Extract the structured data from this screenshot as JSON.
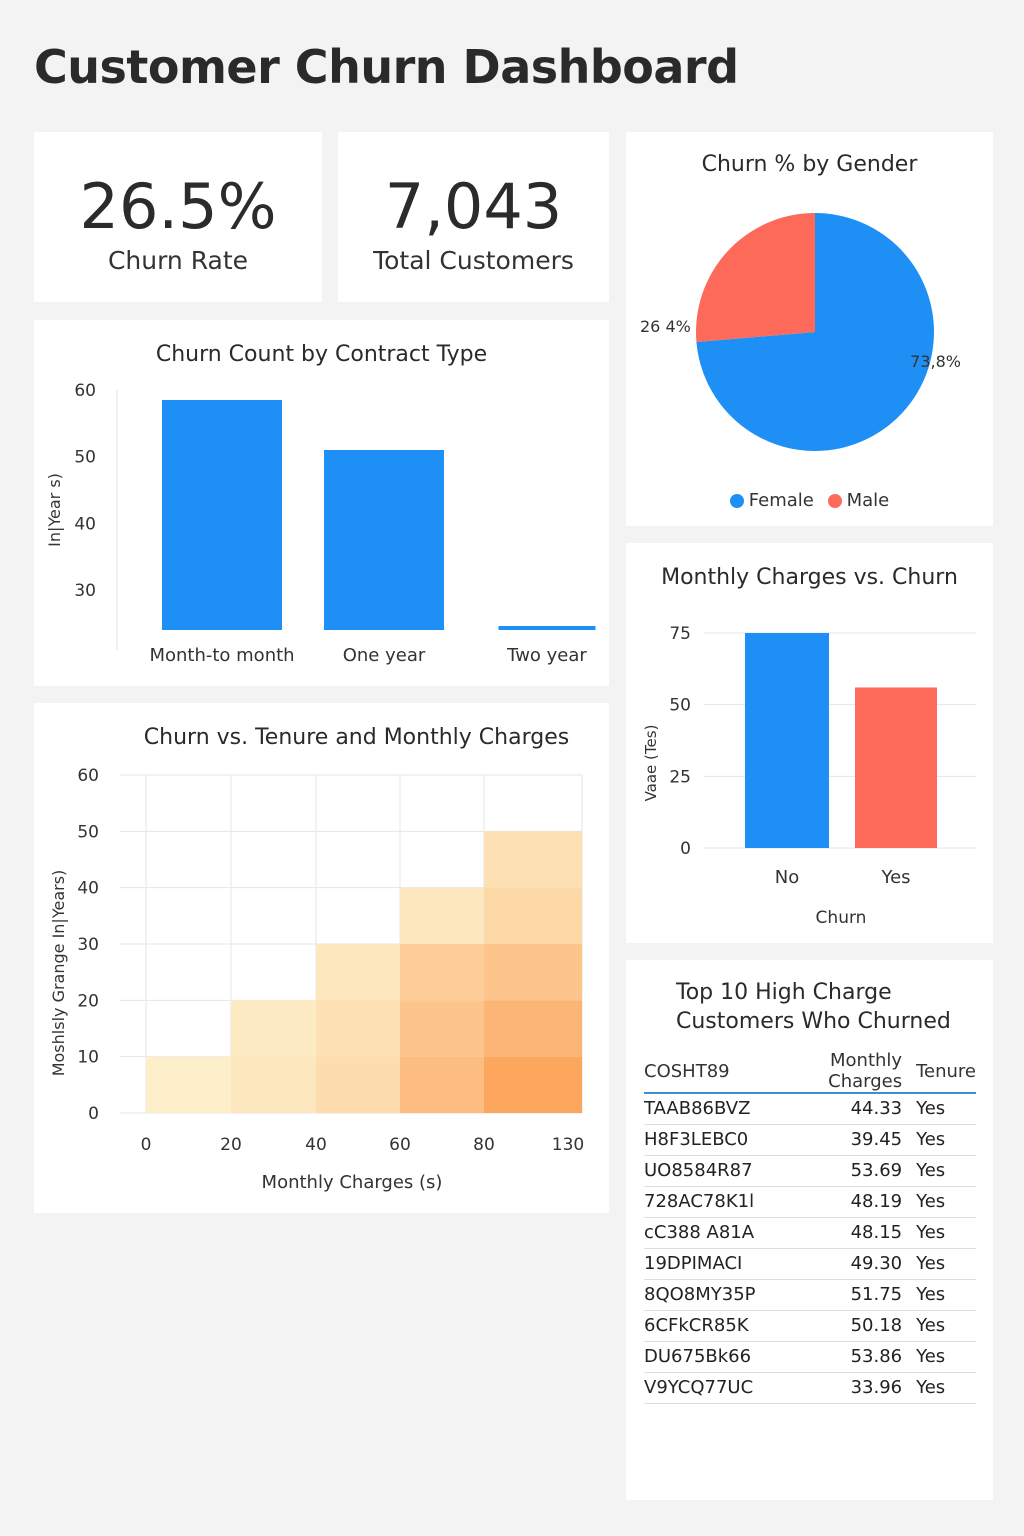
{
  "page_title": "Customer Churn Dashboard",
  "kpis": {
    "churn_rate": {
      "value": "26.5%",
      "label": "Churn Rate"
    },
    "total_customers": {
      "value": "7,043",
      "label": "Total Customers"
    }
  },
  "colors": {
    "blue": "#1e90f5",
    "red": "#fd6a5a",
    "heat_light": "#fdf3cf",
    "heat_dark": "#fda65e"
  },
  "chart_data": [
    {
      "id": "contract",
      "type": "bar",
      "title": "Churn Count by Contract Type",
      "ylabel": "In|Year s)",
      "categories": [
        "Month-to month",
        "One year",
        "Two year"
      ],
      "values": [
        58.5,
        51,
        24.5
      ],
      "y_ticks": [
        30,
        40,
        50,
        60
      ],
      "ylim": [
        24,
        60
      ],
      "color": "#1e90f5",
      "grid": false
    },
    {
      "id": "gender",
      "type": "pie",
      "title": "Churn % by Gender",
      "slices": [
        {
          "name": "Female",
          "value": 73.8,
          "label": "73,8%",
          "color": "#1e90f5"
        },
        {
          "name": "Male",
          "value": 26.4,
          "label": "26 4%",
          "color": "#fd6a5a"
        }
      ],
      "legend": "bottom"
    },
    {
      "id": "monthly",
      "type": "bar",
      "title": "Monthly Charges vs. Churn",
      "ylabel": "Vaae (Tes)",
      "xlabel": "Churn",
      "categories": [
        "No",
        "Yes"
      ],
      "values": [
        75,
        56
      ],
      "colors": [
        "#1e90f5",
        "#fd6a5a"
      ],
      "y_ticks": [
        0,
        25,
        50,
        75
      ],
      "ylim": [
        0,
        75
      ],
      "grid": true
    },
    {
      "id": "tenure",
      "type": "heatmap",
      "title": "Churn vs. Tenure and Monthly Charges",
      "xlabel": "Monthly Charges (s)",
      "ylabel": "Moshlsly Grange In|Years)",
      "x_ticks": [
        "0",
        "20",
        "40",
        "60",
        "80",
        "130"
      ],
      "y_ticks": [
        0,
        10,
        20,
        30,
        40,
        50,
        60
      ],
      "ylim": [
        0,
        60
      ],
      "columns": [
        {
          "from": 0,
          "to": 20,
          "cells": [
            0.05
          ]
        },
        {
          "from": 20,
          "to": 40,
          "cells": [
            0.15,
            0.1
          ]
        },
        {
          "from": 40,
          "to": 60,
          "cells": [
            0.3,
            0.25,
            0.15
          ]
        },
        {
          "from": 60,
          "to": 80,
          "cells": [
            0.7,
            0.6,
            0.5,
            0.15
          ]
        },
        {
          "from": 80,
          "to": 130,
          "cells": [
            1.0,
            0.8,
            0.6,
            0.35,
            0.25
          ]
        }
      ],
      "grid": true
    }
  ],
  "top_table": {
    "title_line1": "Top 10 High Charge",
    "title_line2": "Customers Who Churned",
    "headers": [
      "COSHT89",
      "Monthly Charges",
      "Tenure"
    ],
    "rows": [
      [
        "TAAB86BVZ",
        "44.33",
        "Yes"
      ],
      [
        "H8F3LEBC0",
        "39.45",
        "Yes"
      ],
      [
        "UO8584R87",
        "53.69",
        "Yes"
      ],
      [
        "728AC78K1l",
        "48.19",
        "Yes"
      ],
      [
        "cC388 A81A",
        "48.15",
        "Yes"
      ],
      [
        "19DPIMACI",
        "49.30",
        "Yes"
      ],
      [
        "8QO8MY35P",
        "51.75",
        "Yes"
      ],
      [
        "6CFkCR85K",
        "50.18",
        "Yes"
      ],
      [
        "DU675Bk66",
        "53.86",
        "Yes"
      ],
      [
        "V9YCQ77UC",
        "33.96",
        "Yes"
      ]
    ]
  }
}
